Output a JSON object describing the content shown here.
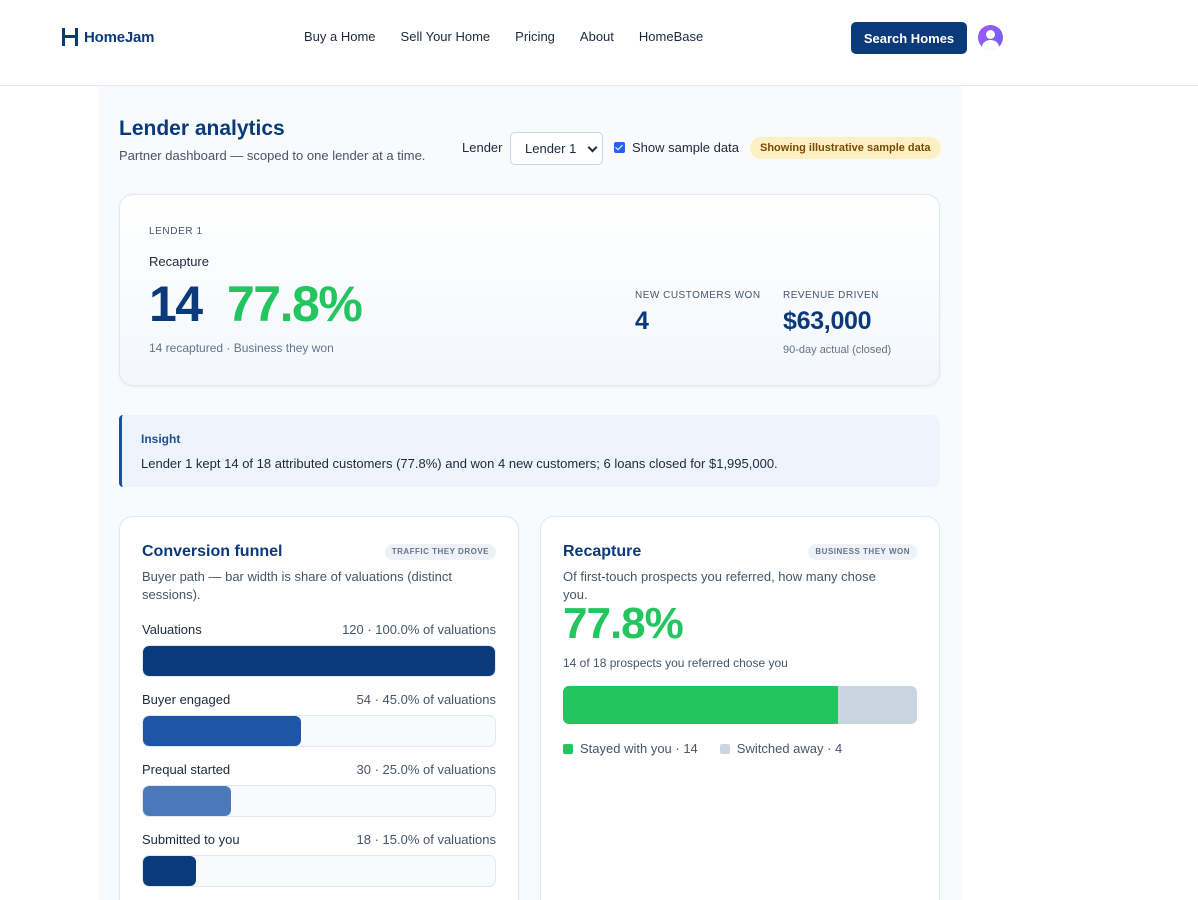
{
  "header": {
    "brand": "HomeJam",
    "nav": [
      "Buy a Home",
      "Sell Your Home",
      "Pricing",
      "About",
      "HomeBase"
    ],
    "cta": "Search Homes"
  },
  "page": {
    "title": "Lender analytics",
    "subtitle": "Partner dashboard — scoped to one lender at a time.",
    "lender_label": "Lender",
    "lender_selected": "Lender 1",
    "show_sample_label": "Show sample data",
    "show_sample_checked": true,
    "sample_badge": "Showing illustrative sample data"
  },
  "kpi": {
    "lender": "LENDER 1",
    "recapture_label": "Recapture",
    "recaptured_count": "14",
    "recapture_rate": "77.8%",
    "caption": "14 recaptured · Business they won",
    "new_customers_label": "NEW CUSTOMERS WON",
    "new_customers_value": "4",
    "revenue_label": "REVENUE DRIVEN",
    "revenue_value": "$63,000",
    "revenue_note": "90-day actual (closed)"
  },
  "insight": {
    "title": "Insight",
    "text": "Lender 1 kept 14 of 18 attributed customers (77.8%) and won 4 new customers; 6 loans closed for $1,995,000."
  },
  "funnel": {
    "title": "Conversion funnel",
    "badge": "TRAFFIC THEY DROVE",
    "description": "Buyer path — bar width is share of valuations (distinct sessions).",
    "rows": [
      {
        "label": "Valuations",
        "value": "120 · 100.0% of valuations",
        "share": 1.0,
        "color": "#0b3a7a"
      },
      {
        "label": "Buyer engaged",
        "value": "54 · 45.0% of valuations",
        "share": 0.45,
        "color": "#1f55a8"
      },
      {
        "label": "Prequal started",
        "value": "30 · 25.0% of valuations",
        "share": 0.25,
        "color": "#4a78b8"
      },
      {
        "label": "Submitted to you",
        "value": "18 · 15.0% of valuations",
        "share": 0.15,
        "color": "#0b3a7a"
      }
    ]
  },
  "recapture": {
    "title": "Recapture",
    "badge": "BUSINESS THEY WON",
    "description": "Of first-touch prospects you referred, how many chose you.",
    "rate": "77.8%",
    "caption": "14 of 18 prospects you referred chose you",
    "stayed": 14,
    "total": 18,
    "stayed_color": "#22c55e",
    "switched_color": "#cbd5e1",
    "legend_stayed": "Stayed with you · 14",
    "legend_switched": "Switched away · 4"
  }
}
